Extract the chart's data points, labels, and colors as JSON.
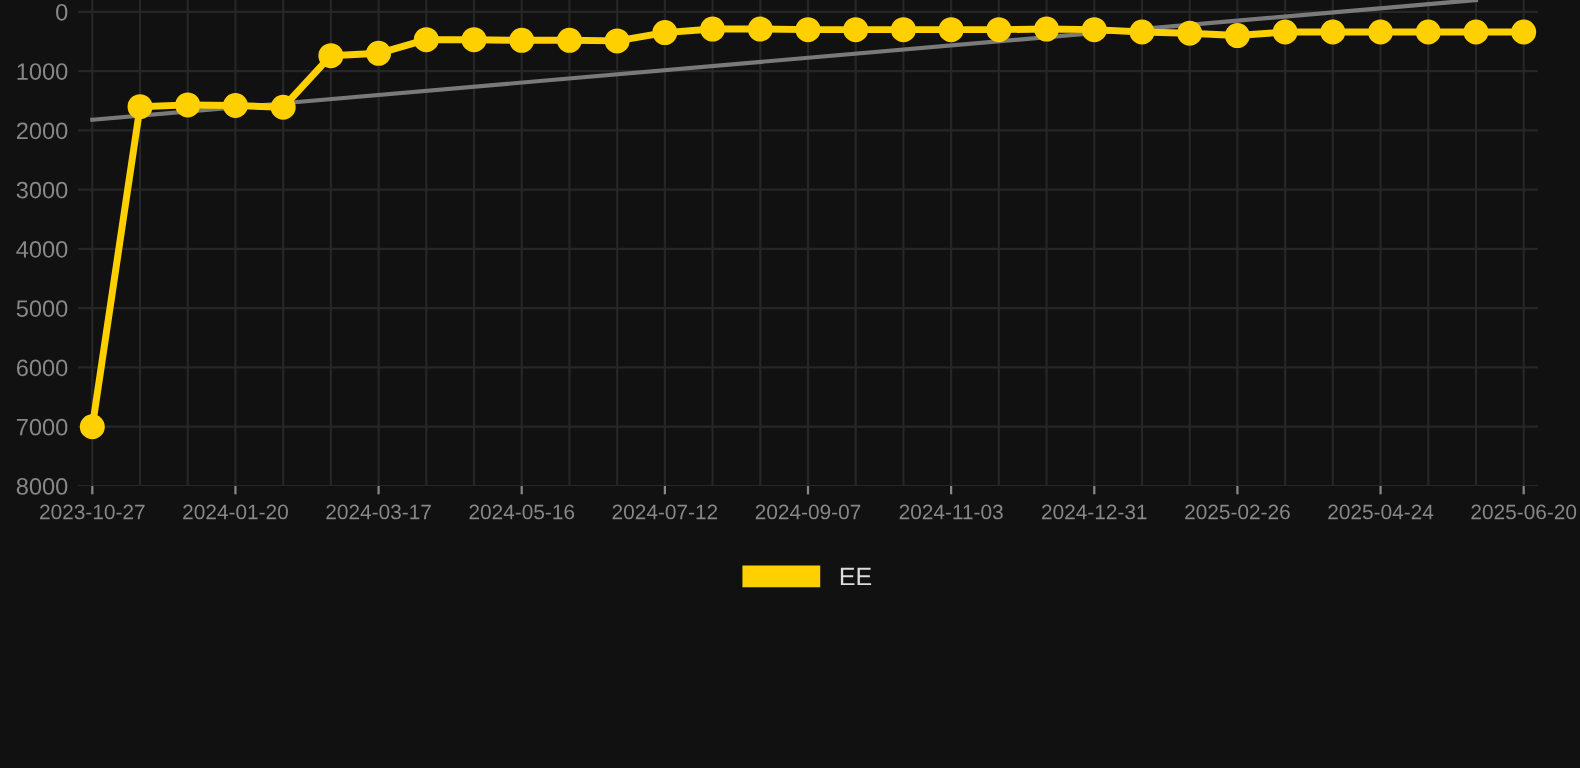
{
  "chart_data": {
    "type": "line",
    "categories": [
      "2023-10-27",
      null,
      null,
      "2024-01-20",
      null,
      null,
      "2024-03-17",
      null,
      null,
      "2024-05-16",
      null,
      null,
      "2024-07-12",
      null,
      null,
      "2024-09-07",
      null,
      null,
      "2024-11-03",
      null,
      null,
      "2024-12-31",
      null,
      null,
      "2025-02-26",
      null,
      null,
      "2025-04-24",
      null,
      null,
      "2025-06-20"
    ],
    "series": [
      {
        "name": "EE",
        "color": "#ffd000",
        "marker": "circle",
        "values": [
          7000,
          1600,
          1570,
          1580,
          1610,
          740,
          700,
          470,
          470,
          480,
          480,
          490,
          350,
          290,
          290,
          300,
          300,
          300,
          300,
          300,
          290,
          300,
          340,
          360,
          400,
          340,
          340,
          340,
          340,
          340,
          340
        ]
      },
      {
        "color": "#7a7a7a",
        "marker": "none",
        "values": [
          1820,
          null,
          null,
          null,
          null,
          null,
          null,
          null,
          null,
          null,
          null,
          null,
          null,
          null,
          null,
          null,
          null,
          null,
          null,
          null,
          null,
          null,
          null,
          null,
          null,
          null,
          null,
          null,
          null,
          -200,
          null
        ]
      }
    ],
    "ylim": [
      8000,
      -200
    ],
    "yticks": [
      0,
      1000,
      2000,
      3000,
      4000,
      5000,
      6000,
      7000,
      8000
    ],
    "grid": true,
    "legend": "bottom",
    "line_style": "solid"
  }
}
